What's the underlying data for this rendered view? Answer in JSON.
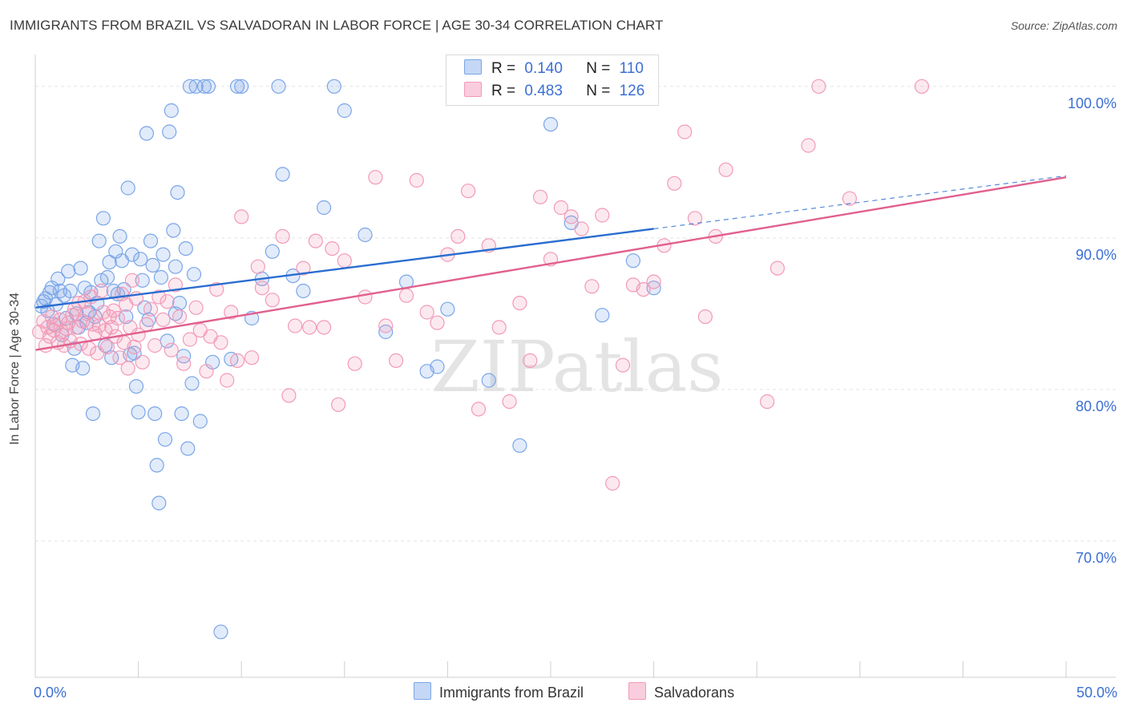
{
  "title": "IMMIGRANTS FROM BRAZIL VS SALVADORAN IN LABOR FORCE | AGE 30-34 CORRELATION CHART",
  "source": "Source: ZipAtlas.com",
  "watermark": "ZIPatlas",
  "legend": {
    "r_label": "R =",
    "n_label": "N =",
    "rows": [
      {
        "r": "0.140",
        "n": "110"
      },
      {
        "r": "0.483",
        "n": "126"
      }
    ]
  },
  "chart_data": {
    "type": "scatter",
    "xlabel": "",
    "ylabel": "In Labor Force | Age 30-34",
    "xlim": [
      0,
      50
    ],
    "ylim": [
      61,
      102
    ],
    "x_tick_labels": [
      "0.0%",
      "50.0%"
    ],
    "y_ticks": [
      70,
      80,
      90,
      100
    ],
    "y_tick_labels": [
      "70.0%",
      "80.0%",
      "90.0%",
      "100.0%"
    ],
    "grid": true,
    "legend_position": "bottom",
    "series": [
      {
        "name": "Immigrants from Brazil",
        "color": "#7aa6e8",
        "line_color": "#2a6dd0",
        "r": 0.14,
        "n": 110,
        "trend": {
          "x": [
            0.0,
            30.0
          ],
          "y": [
            85.4,
            90.6
          ],
          "dashed_to": {
            "x": 50.0,
            "y": 94.1
          }
        },
        "points": [
          [
            0.3,
            85.5
          ],
          [
            0.4,
            85.8
          ],
          [
            0.5,
            86.0
          ],
          [
            0.6,
            85.2
          ],
          [
            0.7,
            86.4
          ],
          [
            0.8,
            86.7
          ],
          [
            0.9,
            84.3
          ],
          [
            1.0,
            85.6
          ],
          [
            1.1,
            87.3
          ],
          [
            1.2,
            86.5
          ],
          [
            1.3,
            83.6
          ],
          [
            1.4,
            86.2
          ],
          [
            1.5,
            84.7
          ],
          [
            1.6,
            87.8
          ],
          [
            1.7,
            86.5
          ],
          [
            1.8,
            81.6
          ],
          [
            1.9,
            82.7
          ],
          [
            2.0,
            85.0
          ],
          [
            2.1,
            84.1
          ],
          [
            2.2,
            88.0
          ],
          [
            2.3,
            81.4
          ],
          [
            2.4,
            86.7
          ],
          [
            2.5,
            84.4
          ],
          [
            2.6,
            85.1
          ],
          [
            2.7,
            86.4
          ],
          [
            2.8,
            78.4
          ],
          [
            2.9,
            84.8
          ],
          [
            3.0,
            85.7
          ],
          [
            3.1,
            89.8
          ],
          [
            3.2,
            87.2
          ],
          [
            3.3,
            91.3
          ],
          [
            3.4,
            82.9
          ],
          [
            3.5,
            87.4
          ],
          [
            3.6,
            88.4
          ],
          [
            3.7,
            82.1
          ],
          [
            3.8,
            86.5
          ],
          [
            3.9,
            89.1
          ],
          [
            4.0,
            86.3
          ],
          [
            4.1,
            90.1
          ],
          [
            4.2,
            88.5
          ],
          [
            4.3,
            86.6
          ],
          [
            4.4,
            84.8
          ],
          [
            4.5,
            93.3
          ],
          [
            4.6,
            82.3
          ],
          [
            4.7,
            88.9
          ],
          [
            4.8,
            82.4
          ],
          [
            4.9,
            80.2
          ],
          [
            5.0,
            78.5
          ],
          [
            5.1,
            88.6
          ],
          [
            5.2,
            87.2
          ],
          [
            5.3,
            85.4
          ],
          [
            5.4,
            96.9
          ],
          [
            5.5,
            84.6
          ],
          [
            5.6,
            89.8
          ],
          [
            5.7,
            88.2
          ],
          [
            5.8,
            78.4
          ],
          [
            5.9,
            75.0
          ],
          [
            6.0,
            72.5
          ],
          [
            6.1,
            87.4
          ],
          [
            6.2,
            88.9
          ],
          [
            6.3,
            76.7
          ],
          [
            6.4,
            83.2
          ],
          [
            6.5,
            97.0
          ],
          [
            6.6,
            98.4
          ],
          [
            6.7,
            90.5
          ],
          [
            6.8,
            88.1
          ],
          [
            6.9,
            93.0
          ],
          [
            7.0,
            85.7
          ],
          [
            7.1,
            78.4
          ],
          [
            7.2,
            82.2
          ],
          [
            7.3,
            89.3
          ],
          [
            7.4,
            76.1
          ],
          [
            7.5,
            100.0
          ],
          [
            7.6,
            80.4
          ],
          [
            7.7,
            87.6
          ],
          [
            7.8,
            100.0
          ],
          [
            8.0,
            77.9
          ],
          [
            8.2,
            100.0
          ],
          [
            8.4,
            100.0
          ],
          [
            8.6,
            81.8
          ],
          [
            9.0,
            64.0
          ],
          [
            9.5,
            82.0
          ],
          [
            9.8,
            100.0
          ],
          [
            10.0,
            100.0
          ],
          [
            10.5,
            84.7
          ],
          [
            11.0,
            87.3
          ],
          [
            11.5,
            89.1
          ],
          [
            11.8,
            100.0
          ],
          [
            12.0,
            94.2
          ],
          [
            12.5,
            87.5
          ],
          [
            13.0,
            86.5
          ],
          [
            14.0,
            92.0
          ],
          [
            14.5,
            100.0
          ],
          [
            15.0,
            98.4
          ],
          [
            16.0,
            90.2
          ],
          [
            17.0,
            83.8
          ],
          [
            18.0,
            87.1
          ],
          [
            19.0,
            81.2
          ],
          [
            19.5,
            81.5
          ],
          [
            20.0,
            85.3
          ],
          [
            22.0,
            80.6
          ],
          [
            23.5,
            76.3
          ],
          [
            25.0,
            97.5
          ],
          [
            26.0,
            91.0
          ],
          [
            27.5,
            84.9
          ],
          [
            28.0,
            100.0
          ],
          [
            29.0,
            88.5
          ],
          [
            30.0,
            86.7
          ],
          [
            6.8,
            85.0
          ]
        ]
      },
      {
        "name": "Salvadorans",
        "color": "#f29ab8",
        "line_color": "#e0608f",
        "r": 0.483,
        "n": 126,
        "trend": {
          "x": [
            0.0,
            50.0
          ],
          "y": [
            82.6,
            94.0
          ]
        },
        "points": [
          [
            0.2,
            83.8
          ],
          [
            0.4,
            84.5
          ],
          [
            0.5,
            82.9
          ],
          [
            0.6,
            84.1
          ],
          [
            0.7,
            83.5
          ],
          [
            0.8,
            84.8
          ],
          [
            0.9,
            83.9
          ],
          [
            1.0,
            84.2
          ],
          [
            1.1,
            83.1
          ],
          [
            1.2,
            84.6
          ],
          [
            1.3,
            83.8
          ],
          [
            1.4,
            82.9
          ],
          [
            1.5,
            84.0
          ],
          [
            1.6,
            84.4
          ],
          [
            1.7,
            83.2
          ],
          [
            1.8,
            84.9
          ],
          [
            1.9,
            85.3
          ],
          [
            2.0,
            84.1
          ],
          [
            2.1,
            85.7
          ],
          [
            2.2,
            83.0
          ],
          [
            2.3,
            84.5
          ],
          [
            2.4,
            85.8
          ],
          [
            2.5,
            85.0
          ],
          [
            2.6,
            82.7
          ],
          [
            2.7,
            86.1
          ],
          [
            2.8,
            84.3
          ],
          [
            2.9,
            83.7
          ],
          [
            3.0,
            82.4
          ],
          [
            3.1,
            84.2
          ],
          [
            3.2,
            86.5
          ],
          [
            3.3,
            85.1
          ],
          [
            3.4,
            83.9
          ],
          [
            3.5,
            82.8
          ],
          [
            3.6,
            84.8
          ],
          [
            3.7,
            84.1
          ],
          [
            3.8,
            85.2
          ],
          [
            3.9,
            83.5
          ],
          [
            4.0,
            84.7
          ],
          [
            4.1,
            82.1
          ],
          [
            4.2,
            86.3
          ],
          [
            4.3,
            83.1
          ],
          [
            4.4,
            85.6
          ],
          [
            4.5,
            81.4
          ],
          [
            4.6,
            84.1
          ],
          [
            4.7,
            87.2
          ],
          [
            4.8,
            82.8
          ],
          [
            4.9,
            86.0
          ],
          [
            5.0,
            83.6
          ],
          [
            5.2,
            81.8
          ],
          [
            5.4,
            84.3
          ],
          [
            5.6,
            85.3
          ],
          [
            5.8,
            82.9
          ],
          [
            6.0,
            86.1
          ],
          [
            6.2,
            84.6
          ],
          [
            6.4,
            85.8
          ],
          [
            6.6,
            82.6
          ],
          [
            6.8,
            86.9
          ],
          [
            7.0,
            84.8
          ],
          [
            7.2,
            81.7
          ],
          [
            7.5,
            83.3
          ],
          [
            7.8,
            85.4
          ],
          [
            8.0,
            83.9
          ],
          [
            8.3,
            81.2
          ],
          [
            8.5,
            83.5
          ],
          [
            8.8,
            86.6
          ],
          [
            9.0,
            83.1
          ],
          [
            9.3,
            80.6
          ],
          [
            9.5,
            85.1
          ],
          [
            9.8,
            81.9
          ],
          [
            10.0,
            91.4
          ],
          [
            10.5,
            82.1
          ],
          [
            10.8,
            88.1
          ],
          [
            11.0,
            86.7
          ],
          [
            11.5,
            85.9
          ],
          [
            12.0,
            90.1
          ],
          [
            12.3,
            79.6
          ],
          [
            12.6,
            84.2
          ],
          [
            13.0,
            88.0
          ],
          [
            13.3,
            84.1
          ],
          [
            13.6,
            89.8
          ],
          [
            14.0,
            84.1
          ],
          [
            14.4,
            89.3
          ],
          [
            14.7,
            79.0
          ],
          [
            15.0,
            88.5
          ],
          [
            15.5,
            81.7
          ],
          [
            16.0,
            86.1
          ],
          [
            16.5,
            94.0
          ],
          [
            17.0,
            84.2
          ],
          [
            17.5,
            81.9
          ],
          [
            18.0,
            86.2
          ],
          [
            18.5,
            93.8
          ],
          [
            19.0,
            85.1
          ],
          [
            19.5,
            84.4
          ],
          [
            20.0,
            88.9
          ],
          [
            20.5,
            90.1
          ],
          [
            21.0,
            93.1
          ],
          [
            21.5,
            78.7
          ],
          [
            22.0,
            89.5
          ],
          [
            22.5,
            84.1
          ],
          [
            23.0,
            79.2
          ],
          [
            23.5,
            85.7
          ],
          [
            24.0,
            81.9
          ],
          [
            24.5,
            92.7
          ],
          [
            25.0,
            88.6
          ],
          [
            25.5,
            92.0
          ],
          [
            26.0,
            91.4
          ],
          [
            26.5,
            90.6
          ],
          [
            27.0,
            86.8
          ],
          [
            27.5,
            91.5
          ],
          [
            28.0,
            73.8
          ],
          [
            28.5,
            81.6
          ],
          [
            29.0,
            86.9
          ],
          [
            29.5,
            86.6
          ],
          [
            30.0,
            87.1
          ],
          [
            30.5,
            89.5
          ],
          [
            31.0,
            93.6
          ],
          [
            31.5,
            97.0
          ],
          [
            32.0,
            91.3
          ],
          [
            32.5,
            84.8
          ],
          [
            33.0,
            90.1
          ],
          [
            33.5,
            94.5
          ],
          [
            35.5,
            79.2
          ],
          [
            36.0,
            88.0
          ],
          [
            37.5,
            96.1
          ],
          [
            38.0,
            100.0
          ],
          [
            39.5,
            92.6
          ],
          [
            43.0,
            100.0
          ]
        ]
      }
    ]
  }
}
